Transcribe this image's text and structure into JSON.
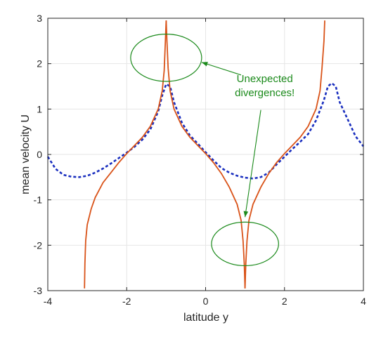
{
  "chart_data": {
    "type": "line",
    "xlabel": "latitude y",
    "ylabel": "mean velocity U",
    "xlim": [
      -4,
      4
    ],
    "ylim": [
      -3,
      3
    ],
    "xticks": [
      "-4",
      "-2",
      "0",
      "2",
      "4"
    ],
    "yticks": [
      "-3",
      "-2",
      "-1",
      "0",
      "1",
      "2",
      "3"
    ],
    "grid": true,
    "colors": {
      "solid": "#d95319",
      "dashed": "#1a2fbf",
      "annotation": "#1b8a1b",
      "grid": "#e6e6e6"
    },
    "series": [
      {
        "style": "dashed",
        "points": [
          [
            -4.0,
            -0.05
          ],
          [
            -3.8,
            -0.32
          ],
          [
            -3.6,
            -0.45
          ],
          [
            -3.4,
            -0.49
          ],
          [
            -3.2,
            -0.5
          ],
          [
            -3.0,
            -0.47
          ],
          [
            -2.8,
            -0.4
          ],
          [
            -2.6,
            -0.31
          ],
          [
            -2.4,
            -0.2
          ],
          [
            -2.2,
            -0.08
          ],
          [
            -2.0,
            0.04
          ],
          [
            -1.8,
            0.17
          ],
          [
            -1.6,
            0.33
          ],
          [
            -1.4,
            0.55
          ],
          [
            -1.2,
            0.95
          ],
          [
            -1.1,
            1.3
          ],
          [
            -1.0,
            1.55
          ],
          [
            -0.9,
            1.5
          ],
          [
            -0.8,
            1.15
          ],
          [
            -0.6,
            0.7
          ],
          [
            -0.4,
            0.42
          ],
          [
            -0.2,
            0.24
          ],
          [
            0.0,
            0.05
          ],
          [
            0.2,
            -0.13
          ],
          [
            0.4,
            -0.3
          ],
          [
            0.6,
            -0.4
          ],
          [
            0.8,
            -0.47
          ],
          [
            1.0,
            -0.51
          ],
          [
            1.2,
            -0.53
          ],
          [
            1.4,
            -0.5
          ],
          [
            1.6,
            -0.4
          ],
          [
            1.8,
            -0.22
          ],
          [
            2.0,
            -0.05
          ],
          [
            2.2,
            0.12
          ],
          [
            2.4,
            0.28
          ],
          [
            2.6,
            0.45
          ],
          [
            2.8,
            0.75
          ],
          [
            3.0,
            1.2
          ],
          [
            3.1,
            1.5
          ],
          [
            3.2,
            1.57
          ],
          [
            3.3,
            1.5
          ],
          [
            3.4,
            1.15
          ],
          [
            3.6,
            0.78
          ],
          [
            3.8,
            0.4
          ],
          [
            4.0,
            0.18
          ]
        ]
      },
      {
        "style": "solid",
        "segments": [
          [
            [
              -3.07,
              -2.95
            ],
            [
              -3.06,
              -2.4
            ],
            [
              -3.04,
              -1.9
            ],
            [
              -3.0,
              -1.55
            ],
            [
              -2.9,
              -1.2
            ],
            [
              -2.8,
              -0.95
            ],
            [
              -2.6,
              -0.62
            ],
            [
              -2.4,
              -0.4
            ],
            [
              -2.2,
              -0.18
            ],
            [
              -2.0,
              0.02
            ],
            [
              -1.8,
              0.2
            ],
            [
              -1.6,
              0.38
            ],
            [
              -1.4,
              0.62
            ],
            [
              -1.2,
              1.0
            ],
            [
              -1.1,
              1.4
            ],
            [
              -1.05,
              1.85
            ],
            [
              -1.02,
              2.5
            ],
            [
              -1.0,
              2.95
            ]
          ],
          [
            [
              -1.0,
              2.95
            ],
            [
              -0.98,
              2.5
            ],
            [
              -0.95,
              1.9
            ],
            [
              -0.9,
              1.4
            ],
            [
              -0.8,
              1.0
            ],
            [
              -0.6,
              0.62
            ],
            [
              -0.4,
              0.38
            ],
            [
              -0.2,
              0.2
            ],
            [
              0.0,
              0.02
            ],
            [
              0.2,
              -0.18
            ],
            [
              0.4,
              -0.42
            ],
            [
              0.6,
              -0.72
            ],
            [
              0.8,
              -1.1
            ],
            [
              0.9,
              -1.45
            ],
            [
              0.95,
              -1.9
            ],
            [
              0.98,
              -2.4
            ],
            [
              1.0,
              -2.95
            ]
          ],
          [
            [
              1.0,
              -2.95
            ],
            [
              1.02,
              -2.4
            ],
            [
              1.05,
              -1.9
            ],
            [
              1.1,
              -1.45
            ],
            [
              1.2,
              -1.1
            ],
            [
              1.4,
              -0.72
            ],
            [
              1.6,
              -0.42
            ],
            [
              1.8,
              -0.18
            ],
            [
              2.0,
              0.02
            ],
            [
              2.2,
              0.2
            ],
            [
              2.4,
              0.38
            ],
            [
              2.6,
              0.62
            ],
            [
              2.8,
              1.0
            ],
            [
              2.9,
              1.4
            ],
            [
              2.95,
              1.9
            ],
            [
              3.0,
              2.5
            ],
            [
              3.02,
              2.95
            ]
          ]
        ]
      }
    ],
    "annotations": {
      "text_line1": "Unexpected",
      "text_line2": "divergences!",
      "text_anchor": [
        1.5,
        1.28
      ],
      "ellipses": [
        {
          "center": [
            -1.0,
            2.13
          ],
          "rx": 0.9,
          "ry": 0.52
        },
        {
          "center": [
            1.0,
            -1.97
          ],
          "rx": 0.85,
          "ry": 0.48
        }
      ],
      "arrows": [
        {
          "from": [
            0.9,
            1.75
          ],
          "to": [
            -0.1,
            2.03
          ]
        },
        {
          "from": [
            1.4,
            0.98
          ],
          "to": [
            1.0,
            -1.38
          ]
        }
      ]
    }
  }
}
